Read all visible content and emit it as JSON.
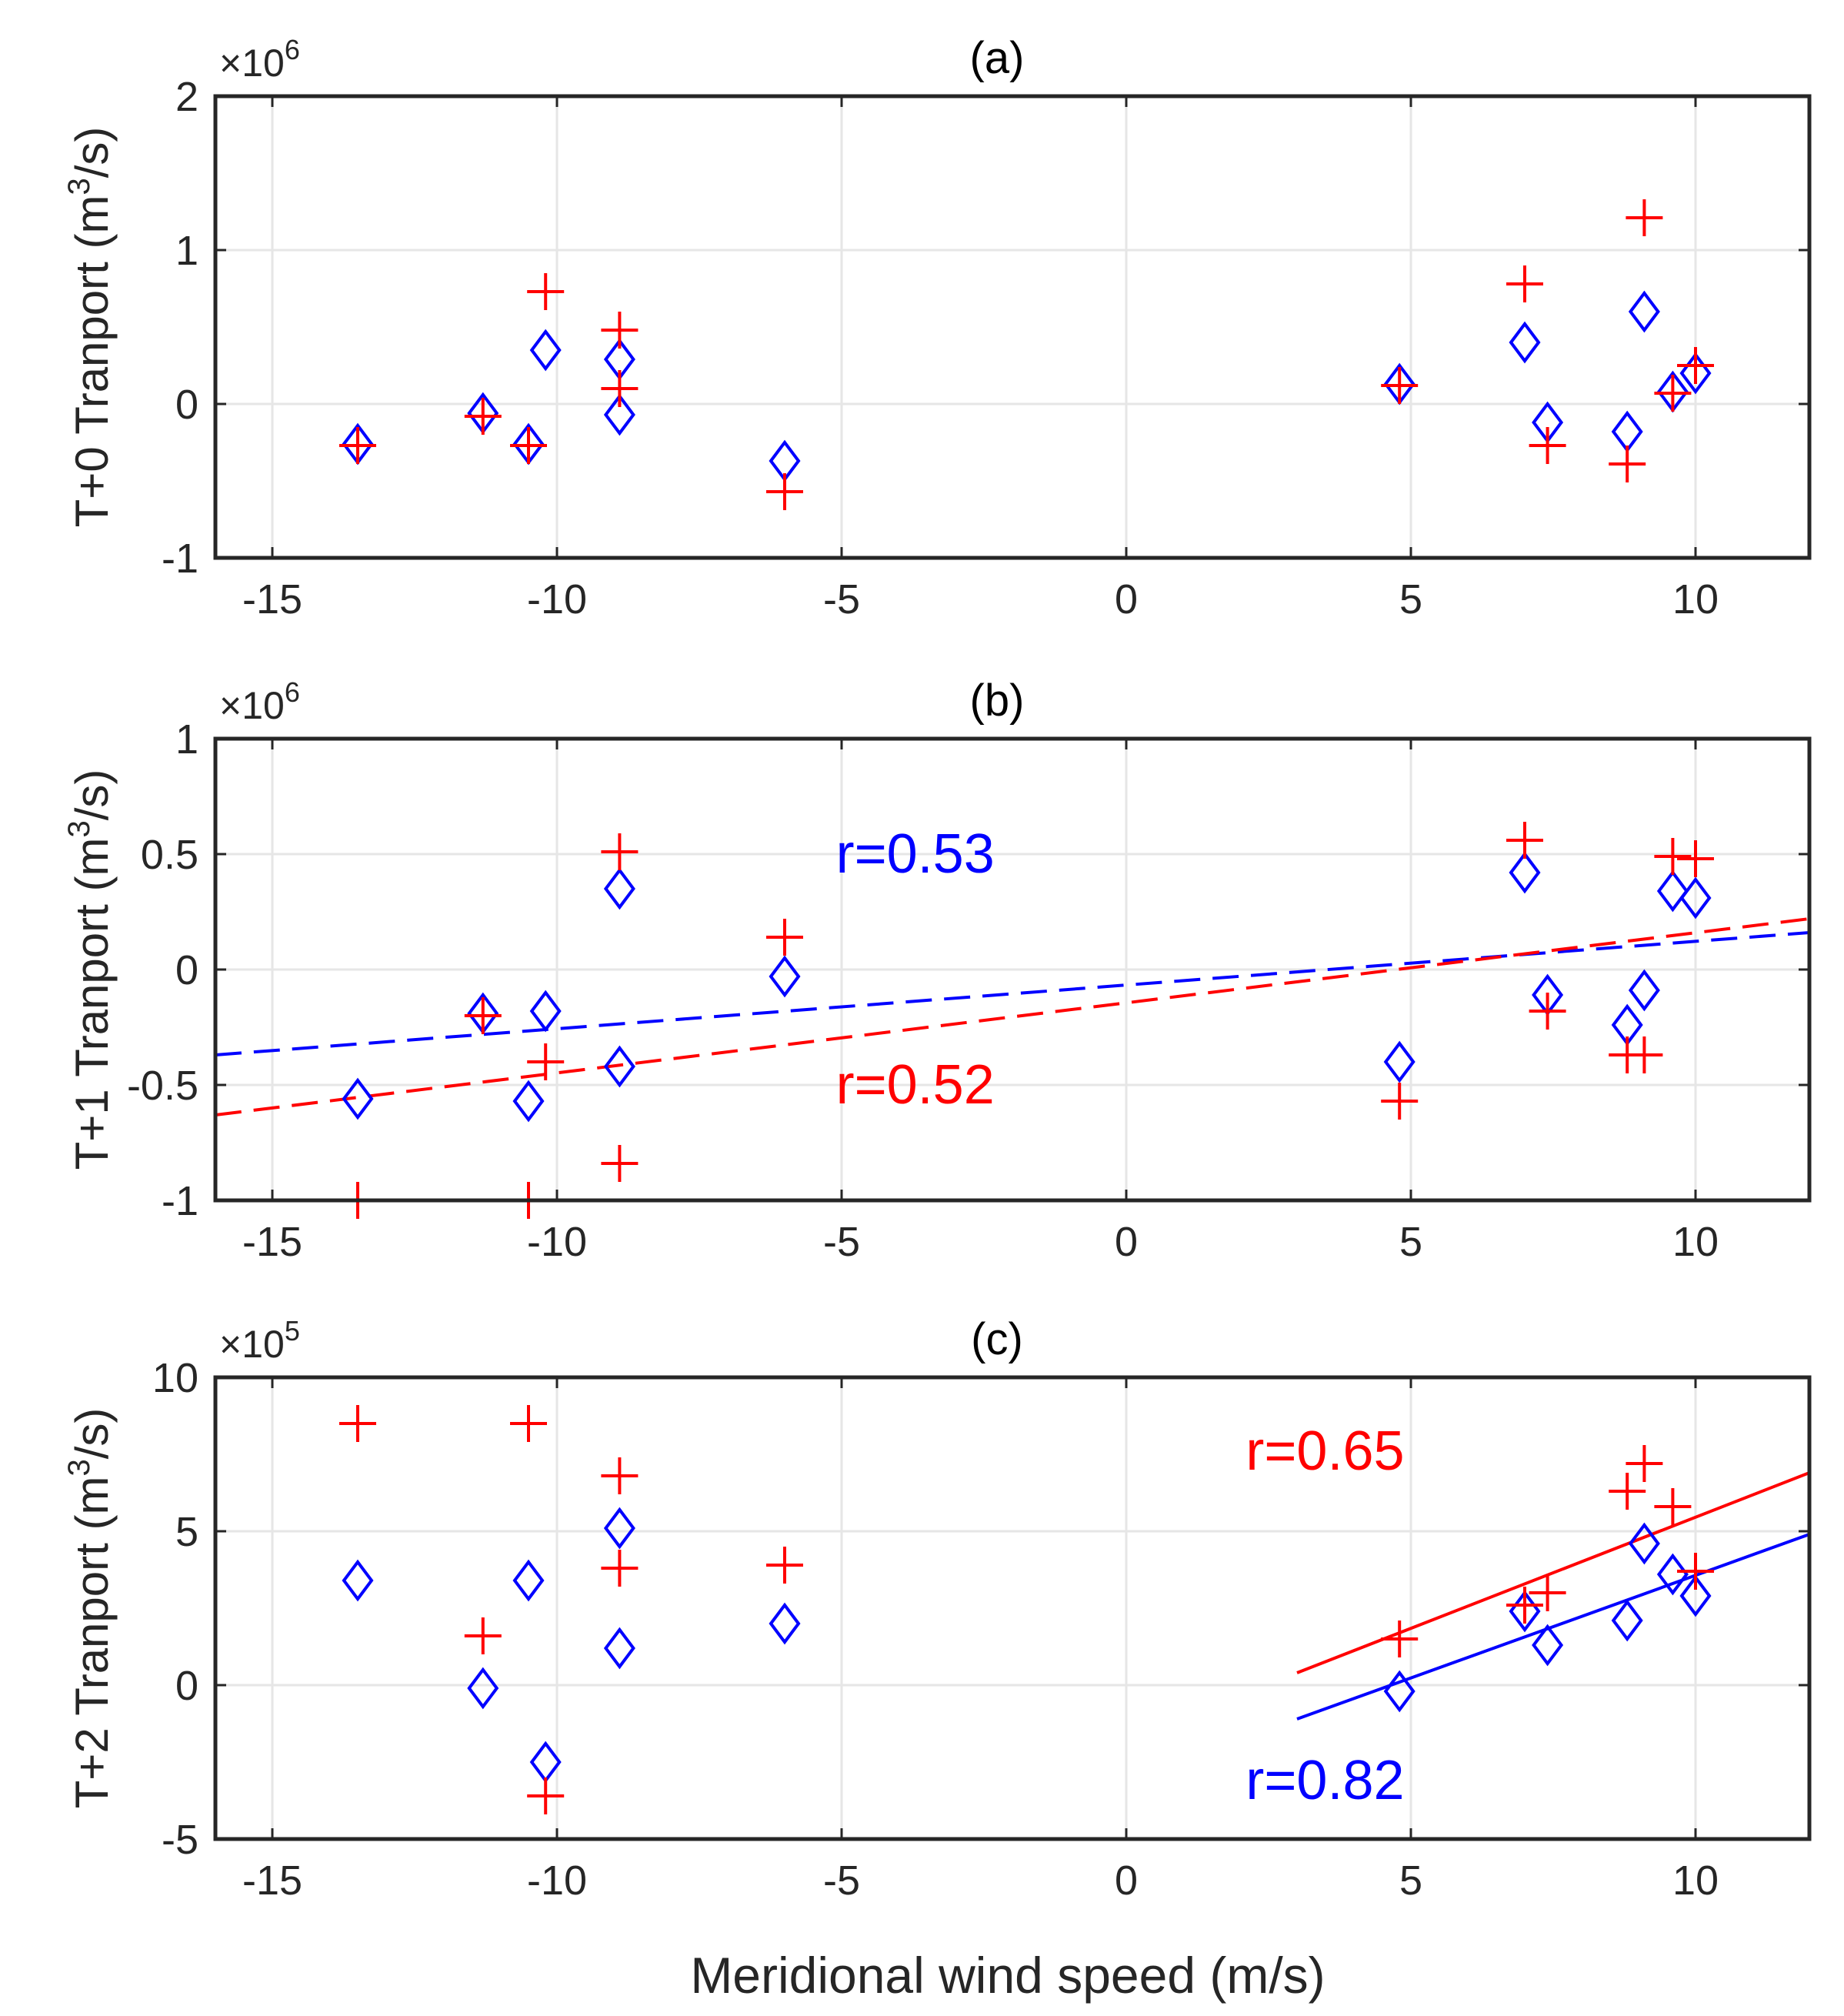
{
  "figure": {
    "xlabel": "Meridional wind speed (m/s)"
  },
  "chart_data": [
    {
      "type": "scatter",
      "title": "(a)",
      "ylabel_prefix": "T+0 Tranport (m",
      "ylabel_sup": "3",
      "ylabel_suffix": "/s)",
      "multiplier_base": "×10",
      "multiplier_exp": "6",
      "xlim": [
        -16,
        12
      ],
      "ylim": [
        -1,
        2
      ],
      "xticks": [
        -15,
        -10,
        -5,
        0,
        5,
        10
      ],
      "yticks": [
        -1,
        0,
        1,
        2
      ],
      "x_tick_labels": [
        "-15",
        "-10",
        "-5",
        "0",
        "5",
        "10"
      ],
      "y_tick_labels": [
        "-1",
        "0",
        "1",
        "2"
      ],
      "grid": true,
      "series": [
        {
          "marker": "diamond",
          "color": "#0000ff",
          "points": [
            [
              -13.5,
              -0.26
            ],
            [
              -11.3,
              -0.06
            ],
            [
              -10.5,
              -0.26
            ],
            [
              -10.2,
              0.35
            ],
            [
              -8.9,
              0.29
            ],
            [
              -8.9,
              -0.07
            ],
            [
              -6,
              -0.37
            ],
            [
              4.8,
              0.13
            ],
            [
              7,
              0.4
            ],
            [
              7.4,
              -0.12
            ],
            [
              8.8,
              -0.18
            ],
            [
              9.1,
              0.6
            ],
            [
              9.6,
              0.08
            ],
            [
              10,
              0.2
            ]
          ]
        },
        {
          "marker": "plus",
          "color": "#ff0000",
          "points": [
            [
              -13.5,
              -0.27
            ],
            [
              -11.3,
              -0.08
            ],
            [
              -10.5,
              -0.27
            ],
            [
              -10.2,
              0.73
            ],
            [
              -8.9,
              0.48
            ],
            [
              -8.9,
              0.1
            ],
            [
              -6,
              -0.57
            ],
            [
              4.8,
              0.12
            ],
            [
              7,
              0.78
            ],
            [
              7.4,
              -0.27
            ],
            [
              8.8,
              -0.39
            ],
            [
              9.1,
              1.21
            ],
            [
              9.6,
              0.07
            ],
            [
              10,
              0.25
            ]
          ]
        }
      ],
      "fit_lines": [],
      "annotations": []
    },
    {
      "type": "scatter",
      "title": "(b)",
      "ylabel_prefix": "T+1 Tranport (m",
      "ylabel_sup": "3",
      "ylabel_suffix": "/s)",
      "multiplier_base": "×10",
      "multiplier_exp": "6",
      "xlim": [
        -16,
        12
      ],
      "ylim": [
        -1,
        1
      ],
      "xticks": [
        -15,
        -10,
        -5,
        0,
        5,
        10
      ],
      "yticks": [
        -1,
        -0.5,
        0,
        0.5,
        1
      ],
      "x_tick_labels": [
        "-15",
        "-10",
        "-5",
        "0",
        "5",
        "10"
      ],
      "y_tick_labels": [
        "-1",
        "-0.5",
        "0",
        "0.5",
        "1"
      ],
      "grid": true,
      "series": [
        {
          "marker": "diamond",
          "color": "#0000ff",
          "points": [
            [
              -13.5,
              -0.56
            ],
            [
              -11.3,
              -0.19
            ],
            [
              -10.5,
              -0.57
            ],
            [
              -10.2,
              -0.18
            ],
            [
              -8.9,
              0.35
            ],
            [
              -8.9,
              -0.42
            ],
            [
              -6,
              -0.03
            ],
            [
              4.8,
              -0.4
            ],
            [
              7,
              0.42
            ],
            [
              7.4,
              -0.11
            ],
            [
              8.8,
              -0.24
            ],
            [
              9.1,
              -0.09
            ],
            [
              9.6,
              0.34
            ],
            [
              10,
              0.31
            ]
          ]
        },
        {
          "marker": "plus",
          "color": "#ff0000",
          "points": [
            [
              -13.5,
              -1.0
            ],
            [
              -11.3,
              -0.2
            ],
            [
              -10.5,
              -1.0
            ],
            [
              -10.2,
              -0.4
            ],
            [
              -8.9,
              0.51
            ],
            [
              -8.9,
              -0.84
            ],
            [
              -6,
              0.14
            ],
            [
              4.8,
              -0.57
            ],
            [
              7,
              0.56
            ],
            [
              7.4,
              -0.18
            ],
            [
              8.8,
              -0.37
            ],
            [
              9.1,
              -0.37
            ],
            [
              9.6,
              0.49
            ],
            [
              10,
              0.48
            ]
          ]
        }
      ],
      "fit_lines": [
        {
          "color": "#0000ff",
          "dash": true,
          "from": [
            -16,
            -0.37
          ],
          "to": [
            12,
            0.16
          ]
        },
        {
          "color": "#ff0000",
          "dash": true,
          "from": [
            -16,
            -0.63
          ],
          "to": [
            12,
            0.22
          ]
        }
      ],
      "annotations": [
        {
          "text": "r=0.53",
          "color": "#0000ff",
          "x": -5.1,
          "y": 0.5
        },
        {
          "text": "r=0.52",
          "color": "#ff0000",
          "x": -5.1,
          "y": -0.5
        }
      ]
    },
    {
      "type": "scatter",
      "title": "(c)",
      "ylabel_prefix": "T+2 Tranport (m",
      "ylabel_sup": "3",
      "ylabel_suffix": "/s)",
      "multiplier_base": "×10",
      "multiplier_exp": "5",
      "xlim": [
        -16,
        12
      ],
      "ylim": [
        -5,
        10
      ],
      "xticks": [
        -15,
        -10,
        -5,
        0,
        5,
        10
      ],
      "yticks": [
        -5,
        0,
        5,
        10
      ],
      "x_tick_labels": [
        "-15",
        "-10",
        "-5",
        "0",
        "5",
        "10"
      ],
      "y_tick_labels": [
        "-5",
        "0",
        "5",
        "10"
      ],
      "grid": true,
      "series": [
        {
          "marker": "diamond",
          "color": "#0000ff",
          "points": [
            [
              -13.5,
              3.4
            ],
            [
              -11.3,
              -0.1
            ],
            [
              -10.5,
              3.4
            ],
            [
              -10.2,
              -2.5
            ],
            [
              -8.9,
              5.1
            ],
            [
              -8.9,
              1.2
            ],
            [
              -6,
              2.0
            ],
            [
              4.8,
              -0.2
            ],
            [
              7,
              2.4
            ],
            [
              7.4,
              1.3
            ],
            [
              8.8,
              2.1
            ],
            [
              9.1,
              4.6
            ],
            [
              9.6,
              3.6
            ],
            [
              10,
              2.9
            ]
          ]
        },
        {
          "marker": "plus",
          "color": "#ff0000",
          "points": [
            [
              -13.5,
              8.5
            ],
            [
              -11.3,
              1.6
            ],
            [
              -10.5,
              8.5
            ],
            [
              -10.2,
              -3.6
            ],
            [
              -8.9,
              6.8
            ],
            [
              -8.9,
              3.8
            ],
            [
              -6,
              3.9
            ],
            [
              4.8,
              1.5
            ],
            [
              7,
              2.6
            ],
            [
              7.4,
              3.0
            ],
            [
              8.8,
              6.3
            ],
            [
              9.1,
              7.2
            ],
            [
              9.6,
              5.8
            ],
            [
              10,
              3.7
            ]
          ]
        }
      ],
      "fit_lines": [
        {
          "color": "#ff0000",
          "dash": false,
          "from": [
            3,
            0.4
          ],
          "to": [
            12,
            6.9
          ]
        },
        {
          "color": "#0000ff",
          "dash": false,
          "from": [
            3,
            -1.1
          ],
          "to": [
            12,
            4.9
          ]
        }
      ],
      "annotations": [
        {
          "text": "r=0.65",
          "color": "#ff0000",
          "x": 2.1,
          "y": 7.6
        },
        {
          "text": "r=0.82",
          "color": "#0000ff",
          "x": 2.1,
          "y": -3.1
        }
      ]
    }
  ]
}
